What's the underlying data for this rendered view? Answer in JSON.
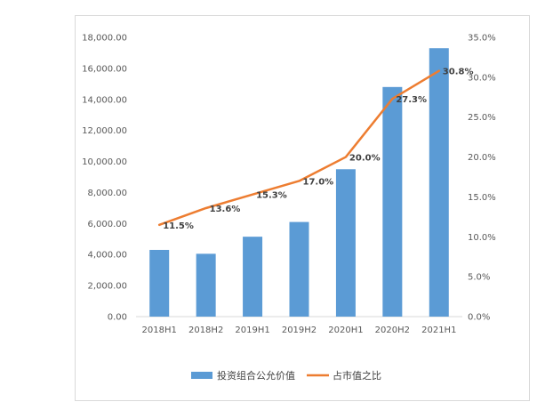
{
  "chart_data": {
    "type": "bar",
    "categories": [
      "2018H1",
      "2018H2",
      "2019H1",
      "2019H2",
      "2020H1",
      "2020H2",
      "2021H1"
    ],
    "series": [
      {
        "name": "投资组合公允价值",
        "type": "bar",
        "axis": "left",
        "values": [
          4300,
          4050,
          5150,
          6100,
          9500,
          14800,
          17300
        ],
        "color": "#5b9bd5"
      },
      {
        "name": "占市值之比",
        "type": "line",
        "axis": "right",
        "values": [
          11.5,
          13.6,
          15.3,
          17.0,
          20.0,
          27.3,
          30.8
        ],
        "labels": [
          "11.5%",
          "13.6%",
          "15.3%",
          "17.0%",
          "20.0%",
          "27.3%",
          "30.8%"
        ],
        "color": "#ed7d31"
      }
    ],
    "y_left": {
      "ylim": [
        0,
        18000
      ],
      "ticks": [
        "0.00",
        "2,000.00",
        "4,000.00",
        "6,000.00",
        "8,000.00",
        "10,000.00",
        "12,000.00",
        "14,000.00",
        "16,000.00",
        "18,000.00"
      ]
    },
    "y_right": {
      "ylim": [
        0,
        35
      ],
      "ticks": [
        "0.0%",
        "5.0%",
        "10.0%",
        "15.0%",
        "20.0%",
        "25.0%",
        "30.0%",
        "35.0%"
      ]
    },
    "grid": false,
    "legend": "bottom"
  }
}
